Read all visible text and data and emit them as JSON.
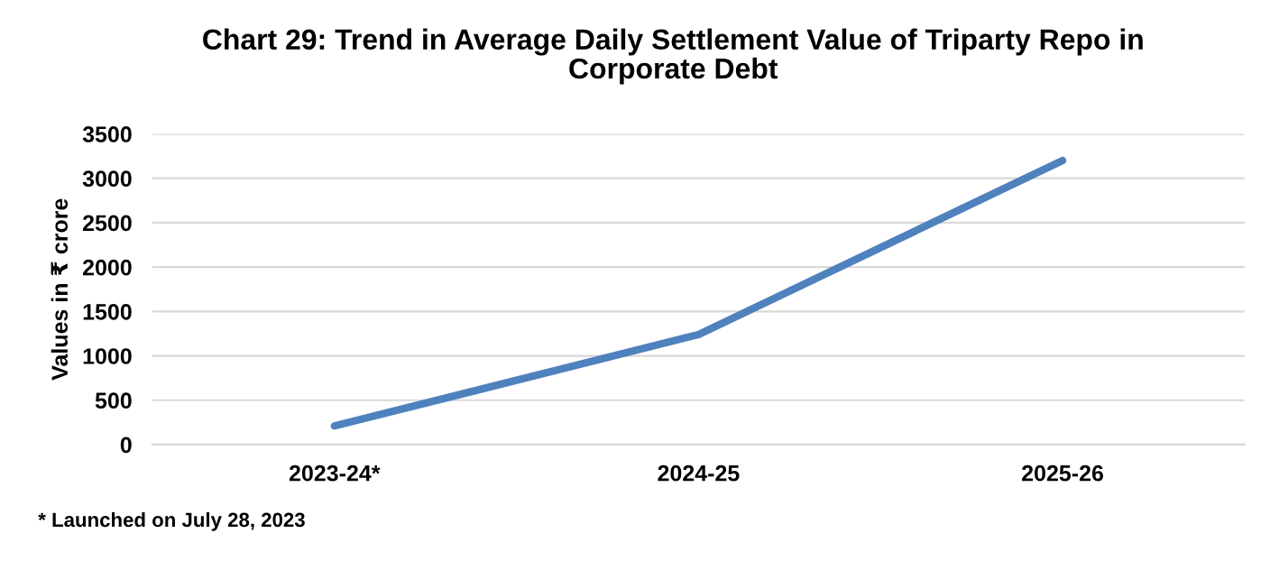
{
  "chart_data": {
    "type": "line",
    "title": "Chart 29: Trend in Average Daily Settlement Value of Triparty Repo in\nCorporate Debt",
    "ylabel": "Values in ₹ crore",
    "categories": [
      "2023-24*",
      "2024-25",
      "2025-26"
    ],
    "series": [
      {
        "color": "#4f81bd",
        "values": [
          210,
          1240,
          3200
        ]
      }
    ],
    "ylim": [
      0,
      3500
    ],
    "yticks": [
      0,
      500,
      1000,
      1500,
      2000,
      2500,
      3000,
      3500
    ],
    "grid": "y",
    "marker": "none",
    "line_style": "solid",
    "annotations": [
      "* Launched on July 28, 2023"
    ]
  }
}
